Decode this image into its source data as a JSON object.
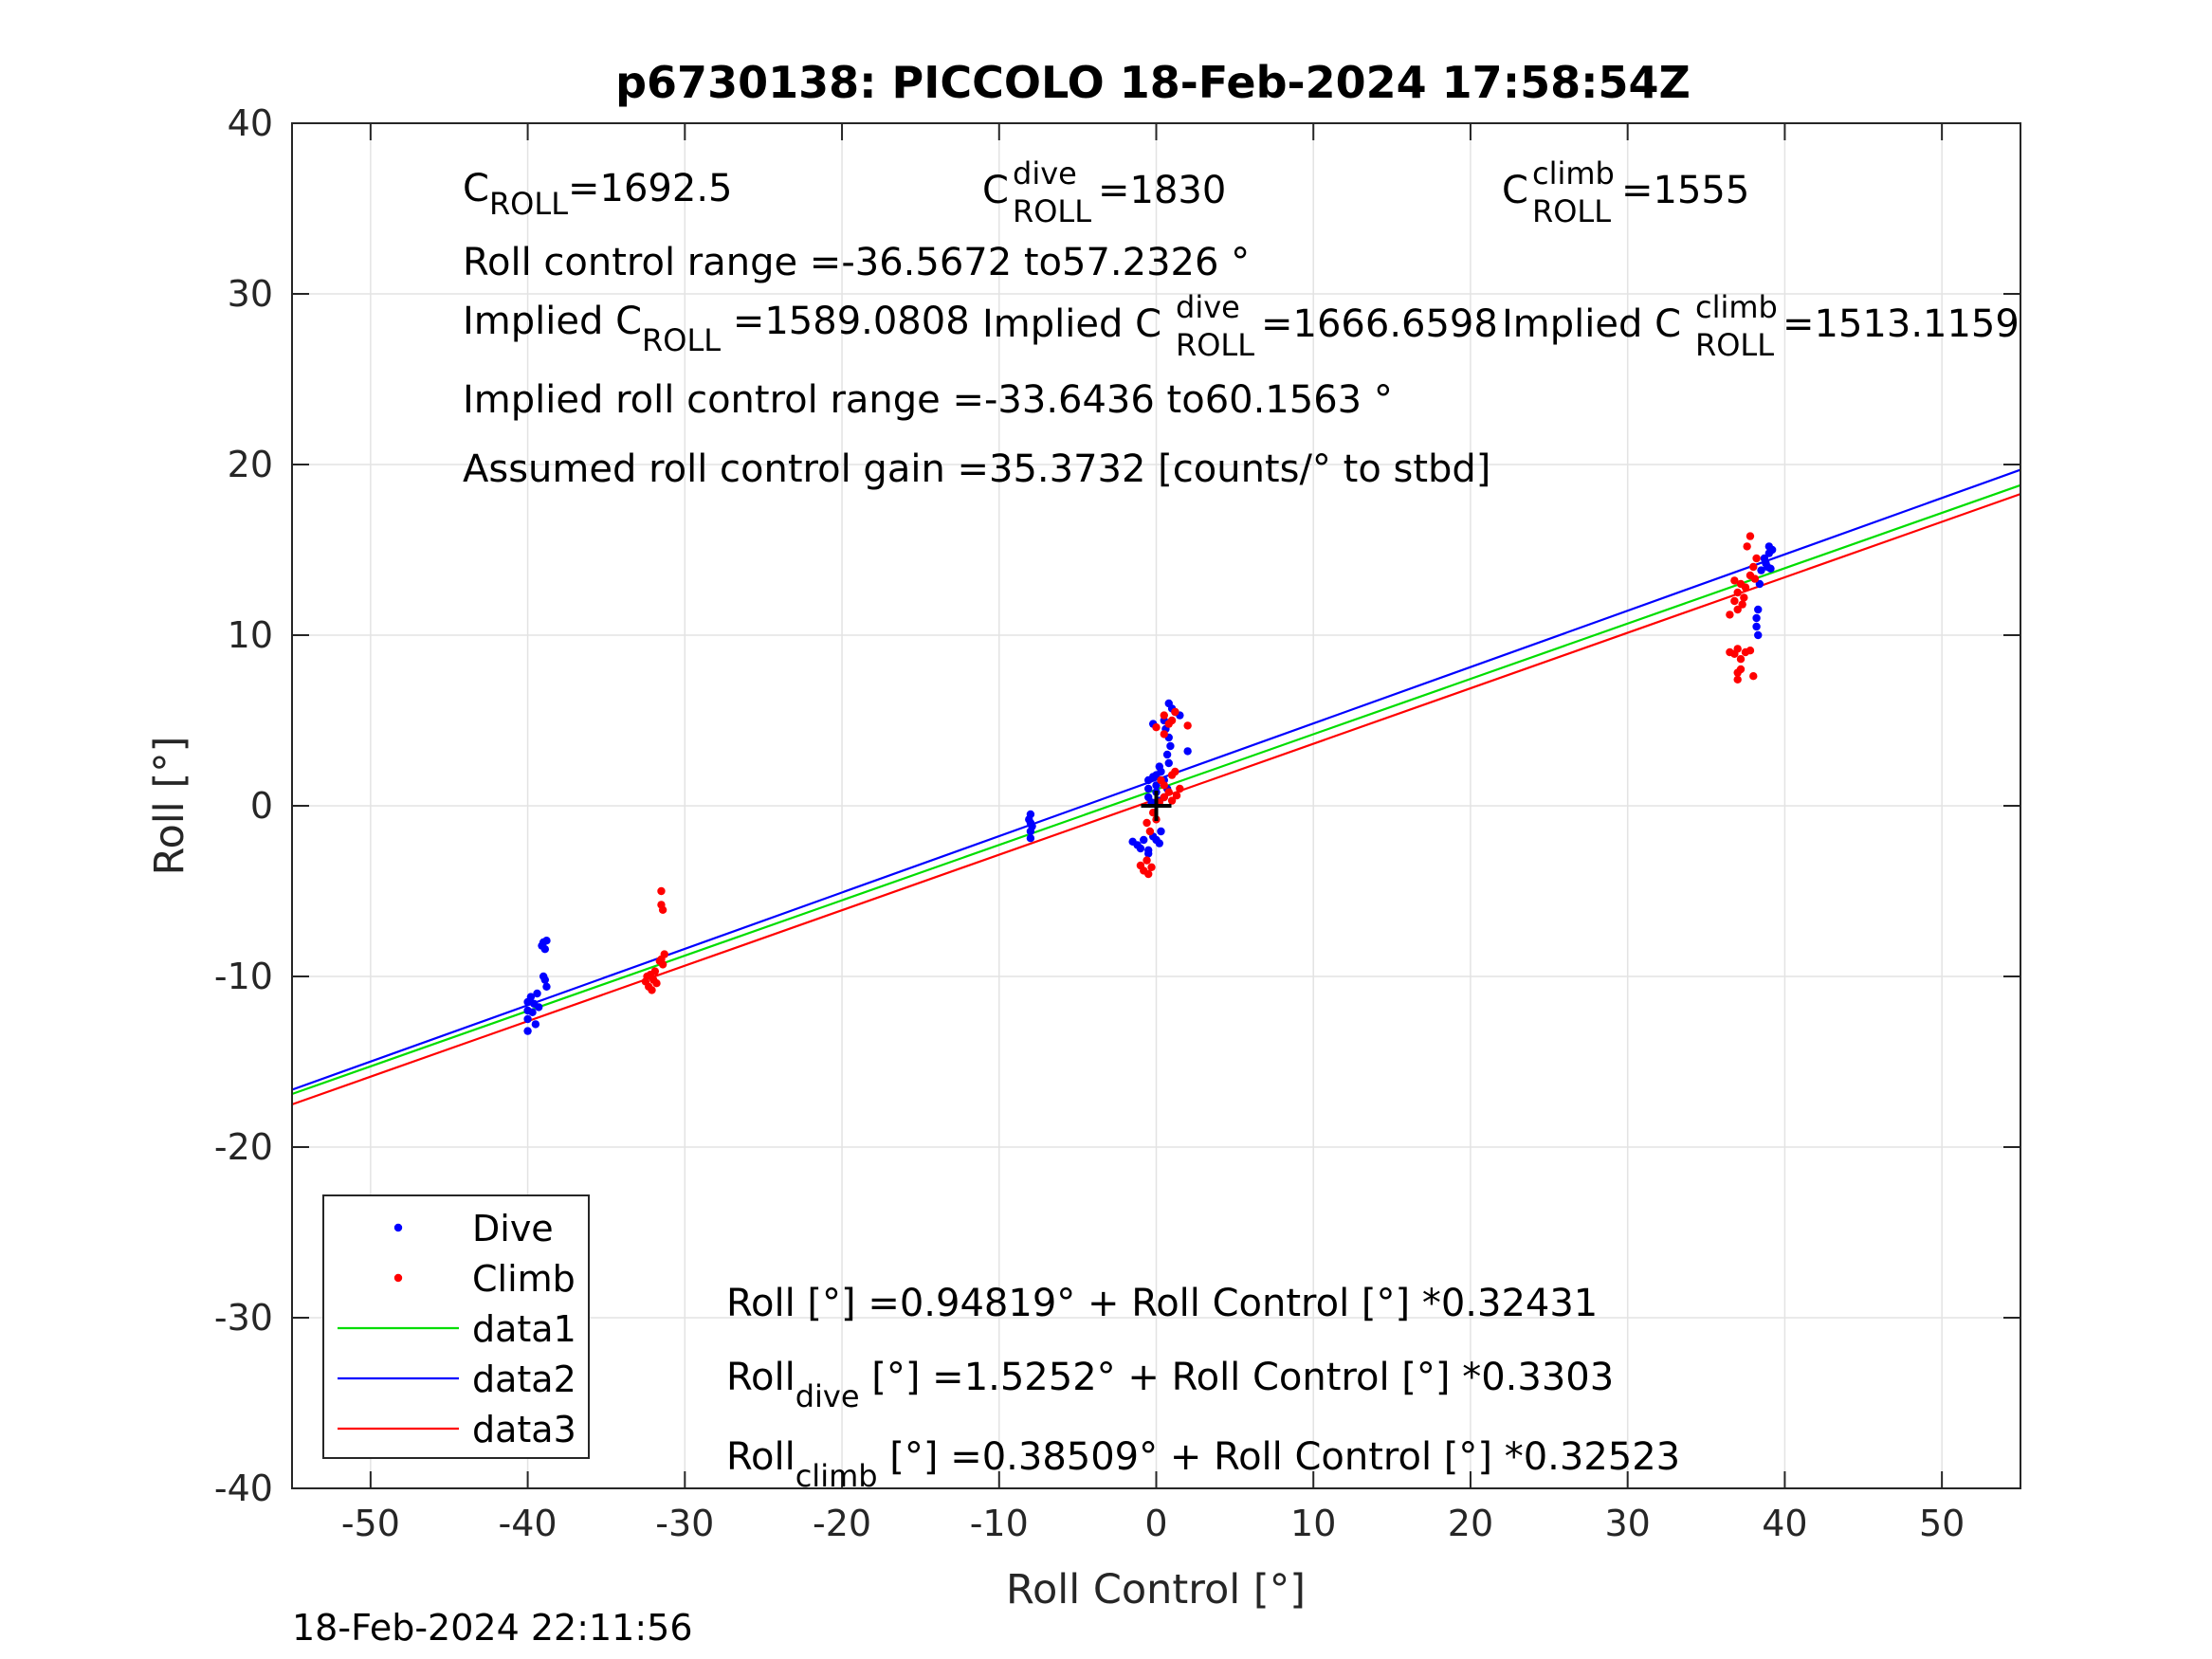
{
  "chart_data": {
    "type": "scatter",
    "title": "p6730138: PICCOLO 18-Feb-2024 17:58:54Z",
    "xlabel": "Roll Control [°]",
    "ylabel": "Roll [°]",
    "xlim": [
      -55,
      55
    ],
    "ylim": [
      -40,
      40
    ],
    "xticks": [
      -50,
      -40,
      -30,
      -20,
      -10,
      0,
      10,
      20,
      30,
      40,
      50
    ],
    "yticks": [
      -40,
      -30,
      -20,
      -10,
      0,
      10,
      20,
      30,
      40
    ],
    "grid": true,
    "legend_position": "bottom-left",
    "timestamp": "18-Feb-2024 22:11:56",
    "annotations": {
      "c_roll": {
        "main": "C",
        "sub": "ROLL",
        "value": "=1692.5"
      },
      "c_roll_dive": {
        "main": "C",
        "sup": "dive",
        "sub": "ROLL",
        "value": " =1830"
      },
      "c_roll_climb": {
        "main": "C",
        "sup": "climb",
        "sub": "ROLL",
        "value": " =1555"
      },
      "roll_range": "Roll control range =-36.5672 to57.2326 °",
      "implied_c_roll": {
        "main": "Implied C",
        "sub": "ROLL",
        "value": " =1589.0808"
      },
      "implied_c_roll_dive": {
        "main": "Implied C",
        "sup": "dive",
        "sub": "ROLL",
        "value": " =1666.6598"
      },
      "implied_c_roll_climb": {
        "main": "Implied C",
        "sup": "climb",
        "sub": "ROLL",
        "value": " =1513.1159"
      },
      "implied_range": "Implied roll control range =-33.6436 to60.1563 °",
      "gain": "Assumed roll control gain =35.3732 [counts/° to stbd]",
      "fit_all": "Roll [°] =0.94819° + Roll Control [°] *0.32431",
      "fit_dive": {
        "main": "Roll",
        "sub": "dive",
        "rest": " [°] =1.5252° + Roll Control [°] *0.3303"
      },
      "fit_climb": {
        "main": "Roll",
        "sub": "climb",
        "rest": " [°] =0.38509° + Roll Control [°] *0.32523"
      }
    },
    "series": [
      {
        "name": "Dive",
        "kind": "points",
        "color": "#0000ff",
        "points": [
          [
            -40,
            -11.5
          ],
          [
            -40,
            -12.0
          ],
          [
            -40,
            -12.5
          ],
          [
            -40,
            -13.2
          ],
          [
            -39.8,
            -11.2
          ],
          [
            -39.7,
            -12.1
          ],
          [
            -39.6,
            -11.6
          ],
          [
            -39.5,
            -12.8
          ],
          [
            -39.4,
            -11.0
          ],
          [
            -39.3,
            -11.8
          ],
          [
            -39,
            -8.0
          ],
          [
            -38.9,
            -8.4
          ],
          [
            -38.8,
            -7.9
          ],
          [
            -38.9,
            -10.2
          ],
          [
            -38.8,
            -10.6
          ],
          [
            -39,
            -10.0
          ],
          [
            -39.1,
            -8.2
          ],
          [
            -8,
            -0.5
          ],
          [
            -8,
            -1.0
          ],
          [
            -8,
            -1.5
          ],
          [
            -8,
            -1.9
          ],
          [
            -8.1,
            -0.8
          ],
          [
            -7.9,
            -1.2
          ],
          [
            -1.5,
            -2.1
          ],
          [
            -1.2,
            -2.3
          ],
          [
            -1.0,
            -2.5
          ],
          [
            -0.8,
            -2.0
          ],
          [
            -0.5,
            -2.8
          ],
          [
            -0.2,
            -1.8
          ],
          [
            0.2,
            -2.2
          ],
          [
            0.3,
            -1.5
          ],
          [
            -0.5,
            -2.6
          ],
          [
            0,
            -2.0
          ],
          [
            -0.5,
            0.5
          ],
          [
            -0.5,
            1.0
          ],
          [
            -0.5,
            1.5
          ],
          [
            -0.3,
            0.2
          ],
          [
            0,
            0.8
          ],
          [
            0,
            1.2
          ],
          [
            0,
            1.8
          ],
          [
            0.2,
            0.3
          ],
          [
            0.3,
            2.0
          ],
          [
            0.5,
            1.5
          ],
          [
            0.5,
            0.5
          ],
          [
            0.7,
            1.0
          ],
          [
            0.2,
            2.3
          ],
          [
            -0.2,
            1.7
          ],
          [
            -0.2,
            4.8
          ],
          [
            0.5,
            5.0
          ],
          [
            0.8,
            6.0
          ],
          [
            1.0,
            5.7
          ],
          [
            1.2,
            5.5
          ],
          [
            1.5,
            5.3
          ],
          [
            0.8,
            4.0
          ],
          [
            0.9,
            3.5
          ],
          [
            2.0,
            3.2
          ],
          [
            0.6,
            4.5
          ],
          [
            0.8,
            2.5
          ],
          [
            0.7,
            3.0
          ],
          [
            38.5,
            13.8
          ],
          [
            38.8,
            14.2
          ],
          [
            39,
            14.8
          ],
          [
            39,
            15.2
          ],
          [
            38.7,
            14.5
          ],
          [
            39.1,
            13.9
          ],
          [
            38.4,
            13.0
          ],
          [
            38.2,
            10.5
          ],
          [
            38.3,
            10.0
          ],
          [
            38.2,
            11.0
          ],
          [
            38.3,
            11.5
          ],
          [
            38.9,
            14.0
          ],
          [
            39.2,
            15.0
          ]
        ]
      },
      {
        "name": "Climb",
        "kind": "points",
        "color": "#ff0000",
        "points": [
          [
            -32.5,
            -10.3
          ],
          [
            -32.3,
            -10.6
          ],
          [
            -32.2,
            -9.9
          ],
          [
            -32.0,
            -10.2
          ],
          [
            -31.8,
            -10.4
          ],
          [
            -32.1,
            -10.8
          ],
          [
            -31.9,
            -9.7
          ],
          [
            -32.4,
            -10.0
          ],
          [
            -31.6,
            -9.1
          ],
          [
            -31.4,
            -9.3
          ],
          [
            -31.3,
            -8.7
          ],
          [
            -31.5,
            -9.0
          ],
          [
            -31.5,
            -5.0
          ],
          [
            -31.5,
            -5.8
          ],
          [
            -31.4,
            -6.1
          ],
          [
            -1.0,
            -3.5
          ],
          [
            -0.8,
            -3.8
          ],
          [
            -0.5,
            -4.0
          ],
          [
            -0.6,
            -3.2
          ],
          [
            -0.3,
            -3.6
          ],
          [
            -0.6,
            -1.0
          ],
          [
            -0.4,
            -1.5
          ],
          [
            -0.2,
            -0.4
          ],
          [
            0,
            -0.8
          ],
          [
            0.2,
            0.2
          ],
          [
            0.5,
            0.5
          ],
          [
            0.8,
            0.8
          ],
          [
            1.0,
            0.3
          ],
          [
            1.3,
            0.6
          ],
          [
            1.5,
            1.0
          ],
          [
            0.5,
            1.2
          ],
          [
            1.0,
            1.8
          ],
          [
            1.2,
            2.0
          ],
          [
            0.3,
            1.5
          ],
          [
            0,
            4.6
          ],
          [
            0.5,
            5.3
          ],
          [
            1.0,
            5.0
          ],
          [
            1.2,
            5.5
          ],
          [
            0.8,
            4.8
          ],
          [
            2.0,
            4.7
          ],
          [
            0.5,
            4.2
          ],
          [
            36.8,
            12.0
          ],
          [
            37,
            12.5
          ],
          [
            37.2,
            13.0
          ],
          [
            37.5,
            12.8
          ],
          [
            37.8,
            13.5
          ],
          [
            38,
            14.0
          ],
          [
            38.2,
            14.5
          ],
          [
            37.6,
            15.2
          ],
          [
            37.8,
            15.8
          ],
          [
            37.3,
            11.8
          ],
          [
            37.0,
            11.5
          ],
          [
            36.8,
            13.2
          ],
          [
            37.4,
            12.2
          ],
          [
            38.1,
            13.3
          ],
          [
            36.5,
            11.2
          ],
          [
            36.5,
            9.0
          ],
          [
            36.8,
            8.9
          ],
          [
            37.0,
            9.2
          ],
          [
            37.2,
            8.6
          ],
          [
            37.5,
            9.0
          ],
          [
            37.8,
            9.1
          ],
          [
            37.0,
            7.8
          ],
          [
            37.2,
            8.0
          ],
          [
            37.0,
            7.4
          ],
          [
            38.0,
            7.6
          ]
        ]
      },
      {
        "name": "data1",
        "kind": "line",
        "color": "#00dd00",
        "x": [
          -55,
          55
        ],
        "y": [
          -16.89,
          18.79
        ]
      },
      {
        "name": "data2",
        "kind": "line",
        "color": "#0000ff",
        "x": [
          -55,
          55
        ],
        "y": [
          -16.64,
          19.69
        ]
      },
      {
        "name": "data3",
        "kind": "line",
        "color": "#ff0000",
        "x": [
          -55,
          55
        ],
        "y": [
          -17.5,
          18.27
        ]
      },
      {
        "name": "",
        "kind": "marker",
        "color": "#000000",
        "points": [
          [
            0,
            0
          ]
        ]
      }
    ]
  }
}
